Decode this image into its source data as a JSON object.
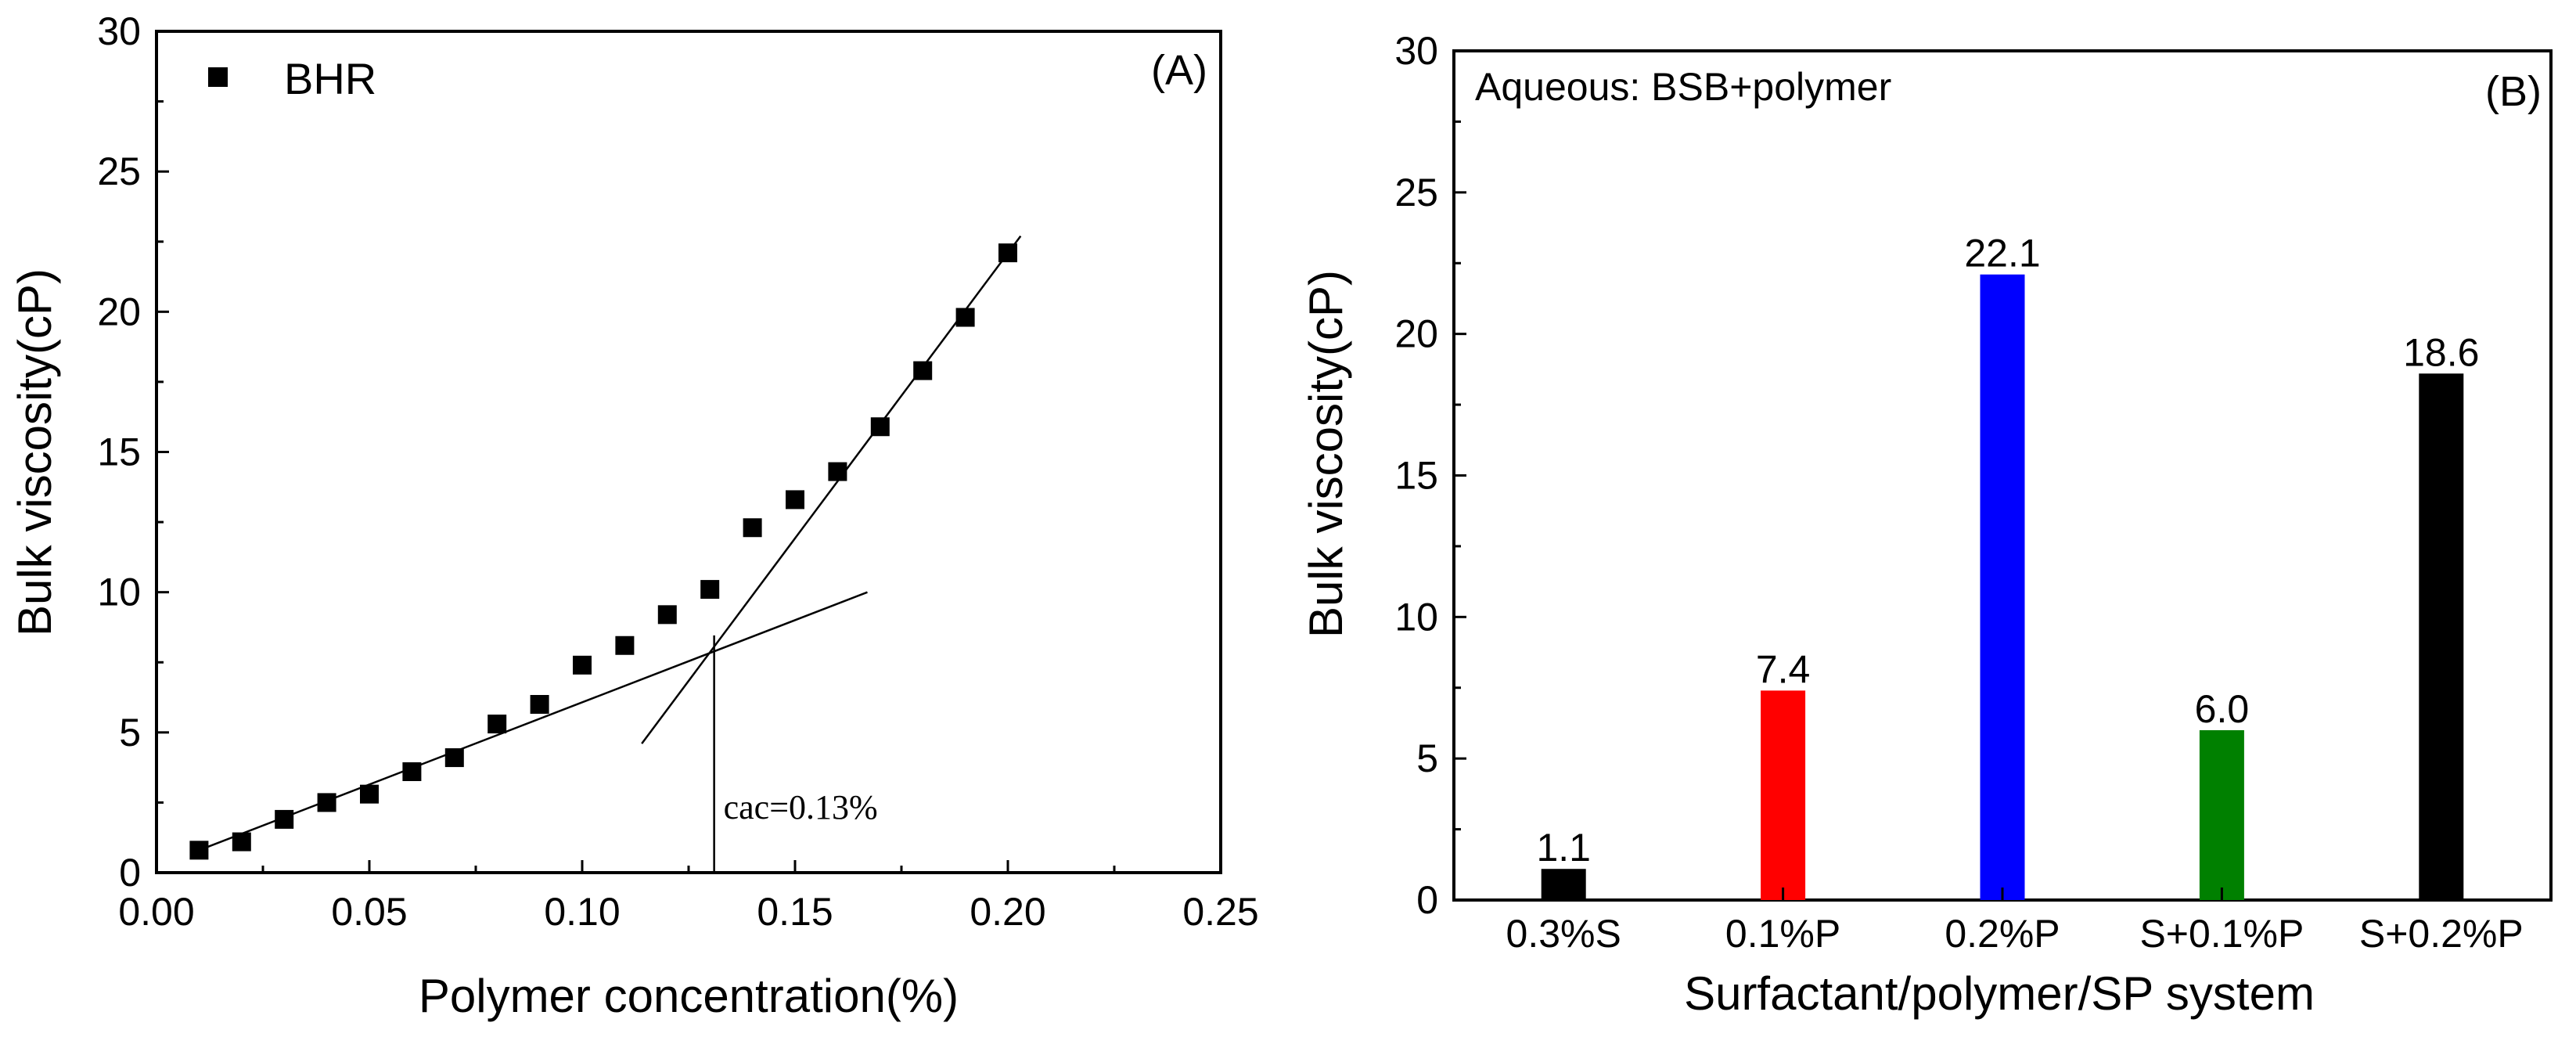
{
  "chart_data": [
    {
      "type": "scatter",
      "panel_label": "(A)",
      "xlabel": "Polymer concentration(%)",
      "ylabel": "Bulk viscosity(cP)",
      "xlim": [
        0.0,
        0.25
      ],
      "ylim": [
        0,
        30
      ],
      "x_ticks": [
        "0.00",
        "0.05",
        "0.10",
        "0.15",
        "0.20",
        "0.25"
      ],
      "y_ticks": [
        "0",
        "5",
        "10",
        "15",
        "20",
        "25",
        "30"
      ],
      "legend": "top-left",
      "series": [
        {
          "name": "BHR",
          "marker": "square",
          "x": [
            0.01,
            0.02,
            0.03,
            0.04,
            0.05,
            0.06,
            0.07,
            0.08,
            0.09,
            0.1,
            0.11,
            0.12,
            0.13,
            0.14,
            0.15,
            0.16,
            0.17,
            0.18,
            0.19,
            0.2
          ],
          "y": [
            0.8,
            1.1,
            1.9,
            2.5,
            2.8,
            3.6,
            4.1,
            5.3,
            6.0,
            7.4,
            8.1,
            9.2,
            10.1,
            12.3,
            13.3,
            14.3,
            15.9,
            17.9,
            19.8,
            22.1
          ]
        }
      ],
      "fit_lines": [
        {
          "name": "low-concentration fit",
          "x": [
            0.01,
            0.167
          ],
          "y": [
            0.8,
            10.0
          ]
        },
        {
          "name": "high-concentration fit",
          "x": [
            0.114,
            0.203
          ],
          "y": [
            4.6,
            22.7
          ]
        }
      ],
      "annotation": {
        "text": "cac=0.13%",
        "cac_x": 0.131,
        "cac_y": 7.9
      }
    },
    {
      "type": "bar",
      "panel_label": "(B)",
      "title": "Aqueous: BSB+polymer",
      "xlabel": "Surfactant/polymer/SP system",
      "ylabel": "Bulk viscosity(cP)",
      "ylim": [
        0,
        30
      ],
      "y_ticks": [
        "0",
        "5",
        "10",
        "15",
        "20",
        "25",
        "30"
      ],
      "categories": [
        "0.3%S",
        "0.1%P",
        "0.2%P",
        "S+0.1%P",
        "S+0.2%P"
      ],
      "values": [
        1.1,
        7.4,
        22.1,
        6.0,
        18.6
      ],
      "value_labels": [
        "1.1",
        "7.4",
        "22.1",
        "6.0",
        "18.6"
      ],
      "colors": [
        "#000000",
        "#ff0000",
        "#0000ff",
        "#008000",
        "#000000"
      ]
    }
  ]
}
